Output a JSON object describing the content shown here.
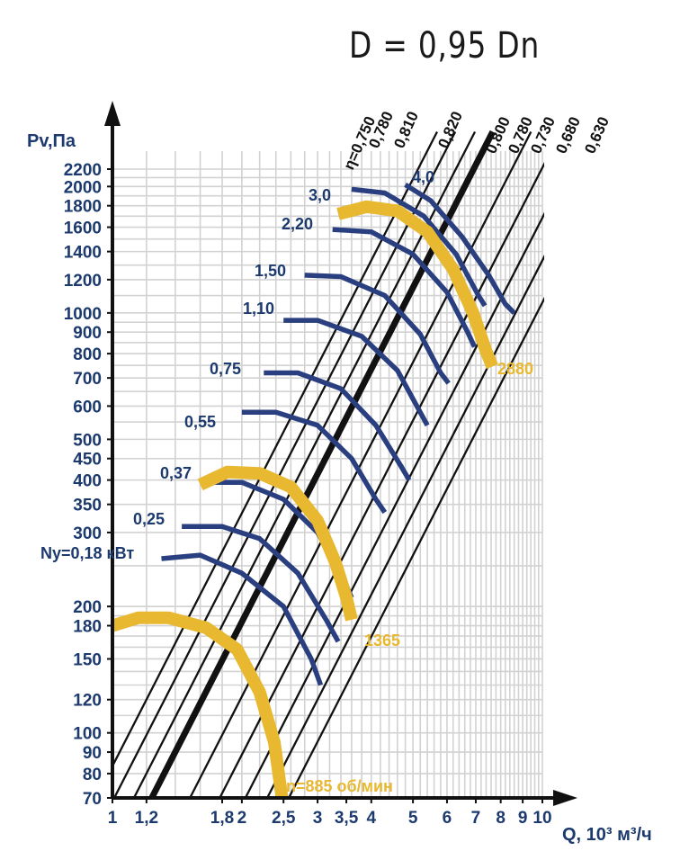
{
  "title": "D = 0,95 Dn",
  "chart_data": {
    "type": "line",
    "xlabel": "Q, 10³ м³/ч",
    "ylabel": "Pv,Па",
    "xscale": "log",
    "yscale": "log",
    "xlim": [
      1,
      10
    ],
    "ylim": [
      70,
      2200
    ],
    "grid": true,
    "x_ticks": [
      {
        "v": 1,
        "t": "1"
      },
      {
        "v": 1.2,
        "t": "1,2"
      },
      {
        "v": 1.8,
        "t": "1,8"
      },
      {
        "v": 2,
        "t": "2"
      },
      {
        "v": 2.5,
        "t": "2,5"
      },
      {
        "v": 3,
        "t": "3"
      },
      {
        "v": 3.5,
        "t": "3,5"
      },
      {
        "v": 4,
        "t": "4"
      },
      {
        "v": 5,
        "t": "5"
      },
      {
        "v": 6,
        "t": "6"
      },
      {
        "v": 7,
        "t": "7"
      },
      {
        "v": 8,
        "t": "8"
      },
      {
        "v": 9,
        "t": "9"
      },
      {
        "v": 10,
        "t": "10"
      }
    ],
    "y_ticks": [
      {
        "v": 70,
        "t": "70"
      },
      {
        "v": 80,
        "t": "80"
      },
      {
        "v": 90,
        "t": "90"
      },
      {
        "v": 100,
        "t": "100"
      },
      {
        "v": 120,
        "t": "120"
      },
      {
        "v": 150,
        "t": "150"
      },
      {
        "v": 180,
        "t": "180"
      },
      {
        "v": 200,
        "t": "200"
      },
      {
        "v": 300,
        "t": "300"
      },
      {
        "v": 350,
        "t": "350"
      },
      {
        "v": 400,
        "t": "400"
      },
      {
        "v": 450,
        "t": "450"
      },
      {
        "v": 500,
        "t": "500"
      },
      {
        "v": 600,
        "t": "600"
      },
      {
        "v": 700,
        "t": "700"
      },
      {
        "v": 800,
        "t": "800"
      },
      {
        "v": 900,
        "t": "900"
      },
      {
        "v": 1000,
        "t": "1000"
      },
      {
        "v": 1200,
        "t": "1200"
      },
      {
        "v": 1400,
        "t": "1400"
      },
      {
        "v": 1600,
        "t": "1600"
      },
      {
        "v": 1800,
        "t": "1800"
      },
      {
        "v": 2000,
        "t": "2000"
      },
      {
        "v": 2200,
        "t": "2200"
      }
    ],
    "efficiency_lines": [
      {
        "label": "η=0,750",
        "bold": false
      },
      {
        "label": "0,780",
        "bold": false
      },
      {
        "label": "0,810",
        "bold": false
      },
      {
        "label": "0,820",
        "bold": true
      },
      {
        "label": "0,800",
        "bold": false
      },
      {
        "label": "0,780",
        "bold": false
      },
      {
        "label": "0,730",
        "bold": false
      },
      {
        "label": "0,680",
        "bold": false
      },
      {
        "label": "0,630",
        "bold": false
      }
    ],
    "power_curves": [
      {
        "label": "Ny=0,18 кВт",
        "points": [
          [
            1.3,
            260
          ],
          [
            1.6,
            265
          ],
          [
            2.0,
            240
          ],
          [
            2.5,
            200
          ],
          [
            2.9,
            150
          ],
          [
            3.05,
            130
          ]
        ]
      },
      {
        "label": "0,25",
        "points": [
          [
            1.45,
            310
          ],
          [
            1.8,
            310
          ],
          [
            2.2,
            290
          ],
          [
            2.7,
            240
          ],
          [
            3.15,
            185
          ],
          [
            3.35,
            165
          ]
        ]
      },
      {
        "label": "0,37",
        "points": [
          [
            1.6,
            395
          ],
          [
            2.0,
            395
          ],
          [
            2.5,
            360
          ],
          [
            3.0,
            300
          ],
          [
            3.4,
            240
          ],
          [
            3.6,
            210
          ]
        ]
      },
      {
        "label": "0,55",
        "points": [
          [
            2.0,
            580
          ],
          [
            2.4,
            580
          ],
          [
            3.0,
            540
          ],
          [
            3.6,
            450
          ],
          [
            4.1,
            360
          ],
          [
            4.3,
            335
          ]
        ]
      },
      {
        "label": "0,75",
        "points": [
          [
            2.25,
            720
          ],
          [
            2.7,
            720
          ],
          [
            3.4,
            660
          ],
          [
            4.1,
            540
          ],
          [
            4.7,
            430
          ],
          [
            4.9,
            400
          ]
        ]
      },
      {
        "label": "1,10",
        "points": [
          [
            2.5,
            960
          ],
          [
            3.0,
            960
          ],
          [
            3.8,
            880
          ],
          [
            4.6,
            730
          ],
          [
            5.2,
            580
          ],
          [
            5.4,
            540
          ]
        ]
      },
      {
        "label": "1,50",
        "points": [
          [
            2.8,
            1230
          ],
          [
            3.4,
            1220
          ],
          [
            4.3,
            1100
          ],
          [
            5.2,
            890
          ],
          [
            5.8,
            720
          ],
          [
            6.05,
            680
          ]
        ]
      },
      {
        "label": "2,20",
        "points": [
          [
            3.25,
            1580
          ],
          [
            4.0,
            1560
          ],
          [
            5.0,
            1380
          ],
          [
            6.0,
            1120
          ],
          [
            6.7,
            900
          ],
          [
            6.95,
            830
          ]
        ]
      },
      {
        "label": "3,0",
        "points": [
          [
            3.6,
            1970
          ],
          [
            4.3,
            1930
          ],
          [
            5.3,
            1700
          ],
          [
            6.3,
            1380
          ],
          [
            7.1,
            1100
          ],
          [
            7.35,
            1040
          ]
        ]
      },
      {
        "label": "4,0",
        "points": [
          [
            4.8,
            2020
          ],
          [
            5.5,
            1850
          ],
          [
            6.5,
            1520
          ],
          [
            7.5,
            1230
          ],
          [
            8.2,
            1050
          ],
          [
            8.6,
            1000
          ]
        ]
      }
    ],
    "speed_curves": [
      {
        "label": "n=885 об/мин",
        "points": [
          [
            1.0,
            180
          ],
          [
            1.15,
            188
          ],
          [
            1.35,
            188
          ],
          [
            1.65,
            178
          ],
          [
            1.95,
            158
          ],
          [
            2.2,
            125
          ],
          [
            2.38,
            95
          ],
          [
            2.48,
            70
          ]
        ]
      },
      {
        "label": "1365",
        "points": [
          [
            1.6,
            390
          ],
          [
            1.85,
            418
          ],
          [
            2.2,
            415
          ],
          [
            2.6,
            385
          ],
          [
            3.0,
            320
          ],
          [
            3.3,
            255
          ],
          [
            3.5,
            210
          ],
          [
            3.6,
            186
          ]
        ]
      },
      {
        "label": "2880",
        "points": [
          [
            3.35,
            1720
          ],
          [
            3.9,
            1790
          ],
          [
            4.6,
            1750
          ],
          [
            5.4,
            1560
          ],
          [
            6.2,
            1270
          ],
          [
            6.9,
            1000
          ],
          [
            7.4,
            810
          ],
          [
            7.65,
            745
          ]
        ]
      }
    ]
  }
}
